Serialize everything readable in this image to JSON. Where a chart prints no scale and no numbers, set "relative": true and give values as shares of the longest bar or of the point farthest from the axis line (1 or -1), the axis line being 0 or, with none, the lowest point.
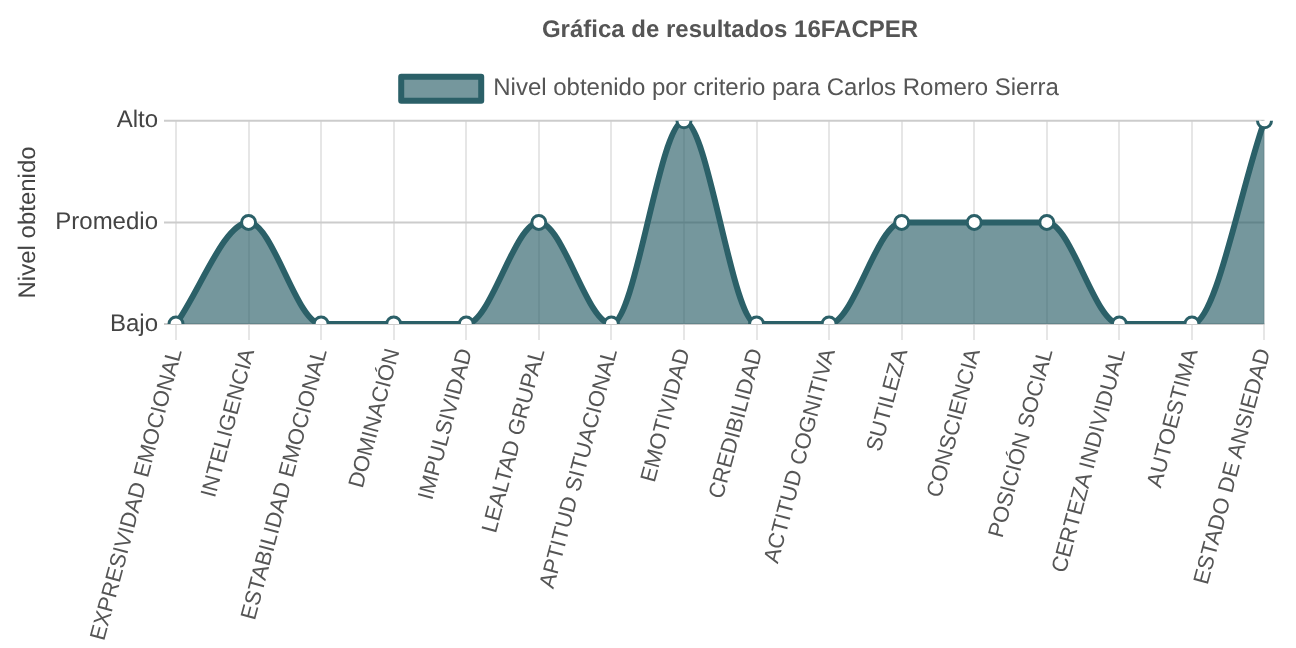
{
  "chart_data": {
    "type": "area",
    "title": "Gráfica de resultados 16FACPER",
    "ylabel": "Nivel obtenido",
    "categories": [
      "EXPRESIVIDAD EMOCIONAL",
      "INTELIGENCIA",
      "ESTABILIDAD EMOCIONAL",
      "DOMINACIÓN",
      "IMPULSIVIDAD",
      "LEALTAD GRUPAL",
      "APTITUD SITUACIONAL",
      "EMOTIVIDAD",
      "CREDIBILIDAD",
      "ACTITUD COGNITIVA",
      "SUTILEZA",
      "CONSCIENCIA",
      "POSICIÓN SOCIAL",
      "CERTEZA INDIVIDUAL",
      "AUTOESTIMA",
      "ESTADO DE ANSIEDAD"
    ],
    "series": [
      {
        "name": "Nivel obtenido por criterio para Carlos Romero Sierra",
        "color": "#2b6068",
        "values": [
          0,
          0.5,
          0,
          0,
          0,
          0.5,
          0,
          1,
          0,
          0,
          0.5,
          0.5,
          0.5,
          0,
          0,
          1
        ]
      }
    ],
    "relative": true,
    "ref_lines": [
      {
        "axis": "y",
        "value": 0,
        "label": "Bajo",
        "color": "#cccccc"
      },
      {
        "axis": "y",
        "value": 0.5,
        "label": "Promedio",
        "color": "#cccccc"
      },
      {
        "axis": "y",
        "value": 1,
        "label": "Alto",
        "color": "#cccccc"
      }
    ],
    "grid": "x",
    "legend": "top",
    "marker": "circle",
    "line_style": "solid"
  }
}
